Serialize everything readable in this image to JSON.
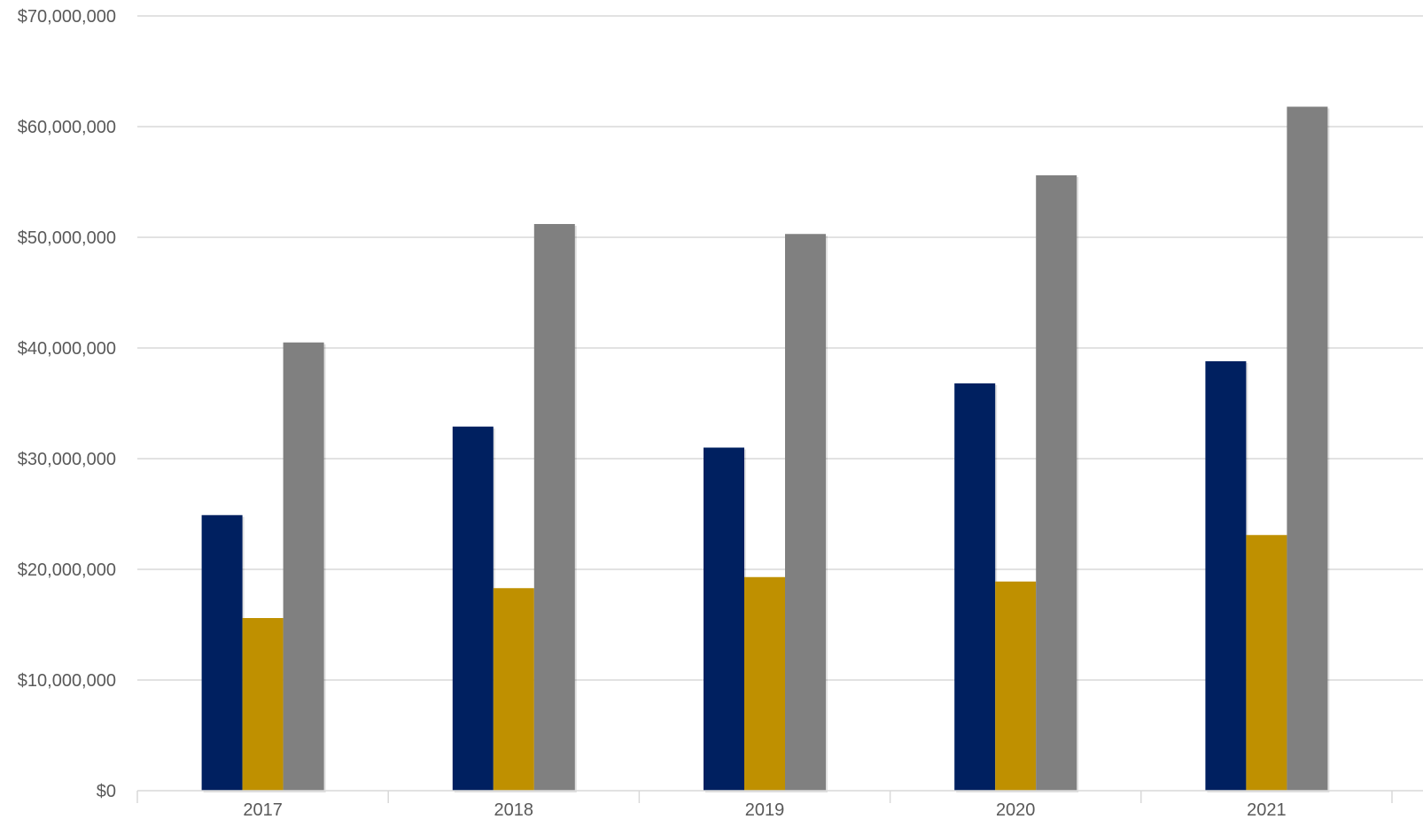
{
  "chart_data": {
    "type": "bar",
    "title": "",
    "xlabel": "",
    "ylabel": "",
    "categories": [
      "2017",
      "2018",
      "2019",
      "2020",
      "2021"
    ],
    "series": [
      {
        "color": "#002060",
        "values": [
          24900000,
          32900000,
          31000000,
          36800000,
          38800000
        ]
      },
      {
        "color": "#BF9000",
        "values": [
          15600000,
          18300000,
          19300000,
          18900000,
          23100000
        ]
      },
      {
        "color": "#808080",
        "values": [
          40500000,
          51200000,
          50300000,
          55600000,
          61800000
        ]
      }
    ],
    "ylim": [
      0,
      70000000
    ],
    "ytick_labels": [
      "$0",
      "$10,000,000",
      "$20,000,000",
      "$30,000,000",
      "$40,000,000",
      "$50,000,000",
      "$60,000,000",
      "$70,000,000"
    ],
    "ytick_values": [
      0,
      10000000,
      20000000,
      30000000,
      40000000,
      50000000,
      60000000,
      70000000
    ],
    "grid": true,
    "legend": "none"
  }
}
